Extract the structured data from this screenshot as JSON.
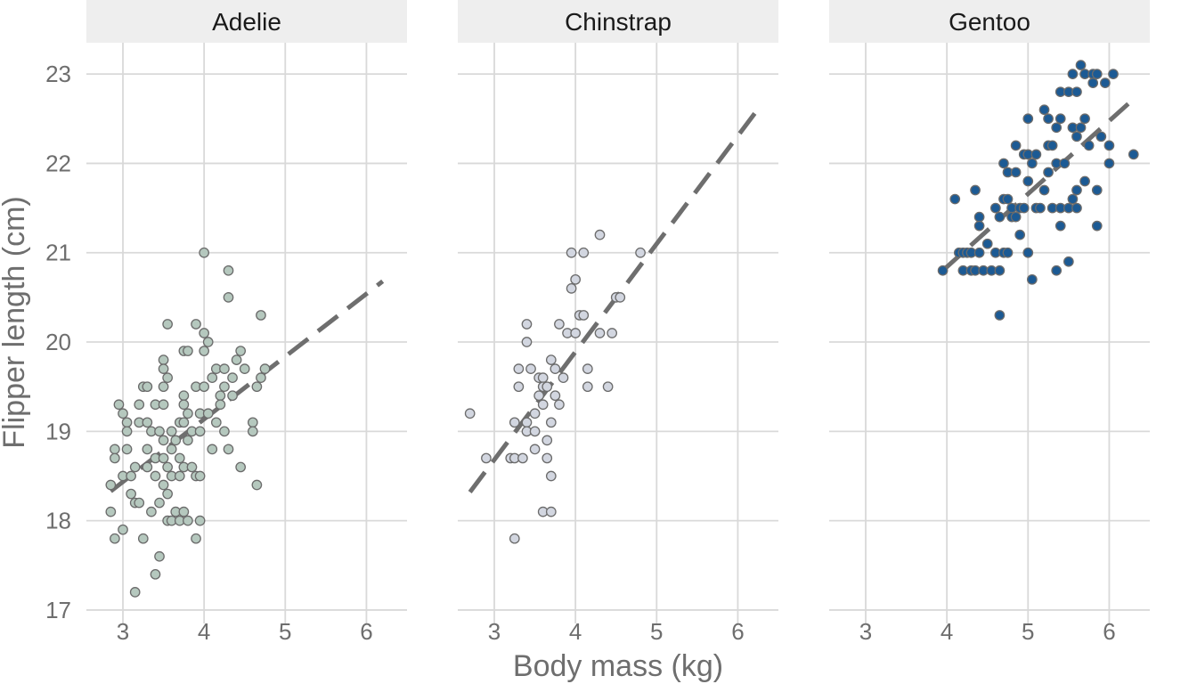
{
  "chart_data": {
    "type": "scatter",
    "xlabel": "Body mass (kg)",
    "ylabel": "Flipper length (cm)",
    "xlim": [
      2.55,
      6.5
    ],
    "ylim": [
      16.85,
      23.35
    ],
    "xticks": [
      3,
      4,
      5,
      6
    ],
    "yticks": [
      17,
      18,
      19,
      20,
      21,
      22,
      23
    ],
    "grid": true,
    "legend": "none",
    "panels": [
      {
        "label": "Adelie",
        "color": "#b5c8be",
        "trend": {
          "x": [
            2.85,
            6.2
          ],
          "y": [
            18.33,
            20.68
          ]
        },
        "points": [
          [
            2.85,
            18.4
          ],
          [
            2.9,
            18.8
          ],
          [
            2.9,
            18.7
          ],
          [
            2.95,
            19.3
          ],
          [
            2.9,
            17.8
          ],
          [
            2.85,
            18.1
          ],
          [
            3.0,
            17.9
          ],
          [
            3.0,
            19.2
          ],
          [
            3.05,
            19.1
          ],
          [
            3.05,
            19.0
          ],
          [
            3.05,
            18.8
          ],
          [
            3.0,
            18.5
          ],
          [
            3.1,
            18.3
          ],
          [
            3.15,
            18.6
          ],
          [
            3.1,
            18.5
          ],
          [
            3.15,
            18.2
          ],
          [
            3.2,
            18.2
          ],
          [
            3.2,
            19.1
          ],
          [
            3.2,
            19.3
          ],
          [
            3.25,
            19.5
          ],
          [
            3.25,
            17.8
          ],
          [
            3.15,
            17.2
          ],
          [
            3.3,
            19.5
          ],
          [
            3.3,
            19.1
          ],
          [
            3.3,
            18.8
          ],
          [
            3.3,
            18.6
          ],
          [
            3.35,
            19.0
          ],
          [
            3.35,
            18.1
          ],
          [
            3.4,
            18.7
          ],
          [
            3.4,
            18.5
          ],
          [
            3.4,
            19.3
          ],
          [
            3.4,
            17.4
          ],
          [
            3.45,
            19.0
          ],
          [
            3.45,
            17.6
          ],
          [
            3.45,
            18.2
          ],
          [
            3.5,
            19.8
          ],
          [
            3.5,
            19.7
          ],
          [
            3.5,
            19.5
          ],
          [
            3.5,
            19.3
          ],
          [
            3.5,
            18.9
          ],
          [
            3.5,
            18.7
          ],
          [
            3.5,
            18.4
          ],
          [
            3.55,
            19.6
          ],
          [
            3.55,
            18.6
          ],
          [
            3.55,
            18.3
          ],
          [
            3.55,
            18.0
          ],
          [
            3.55,
            20.2
          ],
          [
            3.6,
            19.0
          ],
          [
            3.6,
            18.8
          ],
          [
            3.6,
            18.5
          ],
          [
            3.6,
            18.0
          ],
          [
            3.65,
            18.9
          ],
          [
            3.65,
            18.1
          ],
          [
            3.7,
            18.7
          ],
          [
            3.7,
            18.5
          ],
          [
            3.7,
            19.1
          ],
          [
            3.7,
            18.0
          ],
          [
            3.75,
            19.9
          ],
          [
            3.75,
            19.4
          ],
          [
            3.75,
            19.3
          ],
          [
            3.75,
            19.1
          ],
          [
            3.75,
            18.6
          ],
          [
            3.75,
            18.1
          ],
          [
            3.8,
            19.9
          ],
          [
            3.8,
            19.2
          ],
          [
            3.8,
            18.9
          ],
          [
            3.8,
            18.0
          ],
          [
            3.85,
            19.0
          ],
          [
            3.85,
            18.6
          ],
          [
            3.9,
            20.2
          ],
          [
            3.9,
            19.5
          ],
          [
            3.9,
            18.5
          ],
          [
            3.9,
            17.8
          ],
          [
            3.95,
            19.2
          ],
          [
            3.95,
            19.0
          ],
          [
            3.95,
            18.5
          ],
          [
            3.95,
            18.0
          ],
          [
            4.0,
            21.0
          ],
          [
            4.0,
            20.1
          ],
          [
            4.0,
            19.9
          ],
          [
            4.0,
            19.5
          ],
          [
            4.05,
            20.0
          ],
          [
            4.05,
            19.2
          ],
          [
            4.1,
            19.6
          ],
          [
            4.1,
            18.8
          ],
          [
            4.15,
            19.1
          ],
          [
            4.15,
            19.7
          ],
          [
            4.2,
            19.4
          ],
          [
            4.2,
            19.3
          ],
          [
            4.25,
            19.7
          ],
          [
            4.25,
            19.5
          ],
          [
            4.25,
            19.0
          ],
          [
            4.3,
            20.8
          ],
          [
            4.3,
            20.5
          ],
          [
            4.3,
            18.8
          ],
          [
            4.35,
            19.6
          ],
          [
            4.35,
            19.4
          ],
          [
            4.4,
            19.8
          ],
          [
            4.45,
            19.9
          ],
          [
            4.45,
            18.6
          ],
          [
            4.5,
            19.7
          ],
          [
            4.6,
            19.1
          ],
          [
            4.6,
            19.0
          ],
          [
            4.65,
            18.4
          ],
          [
            4.65,
            19.5
          ],
          [
            4.7,
            19.6
          ],
          [
            4.7,
            20.3
          ],
          [
            4.75,
            19.7
          ]
        ]
      },
      {
        "label": "Chinstrap",
        "color": "#d2d6e0",
        "trend": {
          "x": [
            2.7,
            6.3
          ],
          "y": [
            18.32,
            22.67
          ]
        },
        "points": [
          [
            2.7,
            19.2
          ],
          [
            2.9,
            18.7
          ],
          [
            3.2,
            18.7
          ],
          [
            3.25,
            18.7
          ],
          [
            3.25,
            17.8
          ],
          [
            3.25,
            19.1
          ],
          [
            3.3,
            19.7
          ],
          [
            3.3,
            19.5
          ],
          [
            3.35,
            18.7
          ],
          [
            3.4,
            20.2
          ],
          [
            3.4,
            20.0
          ],
          [
            3.4,
            19.1
          ],
          [
            3.4,
            19.0
          ],
          [
            3.45,
            19.7
          ],
          [
            3.5,
            19.2
          ],
          [
            3.5,
            19.0
          ],
          [
            3.5,
            18.8
          ],
          [
            3.55,
            19.6
          ],
          [
            3.55,
            19.4
          ],
          [
            3.6,
            19.6
          ],
          [
            3.6,
            19.5
          ],
          [
            3.6,
            19.3
          ],
          [
            3.6,
            18.1
          ],
          [
            3.65,
            19.5
          ],
          [
            3.65,
            18.9
          ],
          [
            3.65,
            18.7
          ],
          [
            3.7,
            19.8
          ],
          [
            3.7,
            19.1
          ],
          [
            3.7,
            18.5
          ],
          [
            3.7,
            18.1
          ],
          [
            3.75,
            19.7
          ],
          [
            3.75,
            19.4
          ],
          [
            3.8,
            20.2
          ],
          [
            3.8,
            19.3
          ],
          [
            3.85,
            19.6
          ],
          [
            3.9,
            20.1
          ],
          [
            3.95,
            20.6
          ],
          [
            3.95,
            21.0
          ],
          [
            4.0,
            20.7
          ],
          [
            4.0,
            20.1
          ],
          [
            4.05,
            20.3
          ],
          [
            4.1,
            21.0
          ],
          [
            4.1,
            20.3
          ],
          [
            4.15,
            19.7
          ],
          [
            4.15,
            19.5
          ],
          [
            4.3,
            21.2
          ],
          [
            4.3,
            20.1
          ],
          [
            4.4,
            19.5
          ],
          [
            4.45,
            20.1
          ],
          [
            4.5,
            20.5
          ],
          [
            4.55,
            20.5
          ],
          [
            4.8,
            21.0
          ]
        ]
      },
      {
        "label": "Gentoo",
        "color": "#1c5a94",
        "trend": {
          "x": [
            3.95,
            6.3
          ],
          "y": [
            20.8,
            22.72
          ]
        },
        "points": [
          [
            3.95,
            20.8
          ],
          [
            4.1,
            21.6
          ],
          [
            4.15,
            21.0
          ],
          [
            4.2,
            20.8
          ],
          [
            4.2,
            21.0
          ],
          [
            4.25,
            21.0
          ],
          [
            4.3,
            20.8
          ],
          [
            4.3,
            21.0
          ],
          [
            4.35,
            20.8
          ],
          [
            4.35,
            21.7
          ],
          [
            4.4,
            21.4
          ],
          [
            4.4,
            21.3
          ],
          [
            4.4,
            21.0
          ],
          [
            4.45,
            20.8
          ],
          [
            4.5,
            21.1
          ],
          [
            4.55,
            20.8
          ],
          [
            4.6,
            21.5
          ],
          [
            4.6,
            21.0
          ],
          [
            4.65,
            21.4
          ],
          [
            4.65,
            20.8
          ],
          [
            4.65,
            20.3
          ],
          [
            4.7,
            22.0
          ],
          [
            4.7,
            21.6
          ],
          [
            4.7,
            21.0
          ],
          [
            4.75,
            21.9
          ],
          [
            4.75,
            21.6
          ],
          [
            4.75,
            21.0
          ],
          [
            4.8,
            21.5
          ],
          [
            4.8,
            21.4
          ],
          [
            4.85,
            22.2
          ],
          [
            4.85,
            21.9
          ],
          [
            4.85,
            21.4
          ],
          [
            4.9,
            21.5
          ],
          [
            4.9,
            21.2
          ],
          [
            4.95,
            22.1
          ],
          [
            4.95,
            21.5
          ],
          [
            5.0,
            22.5
          ],
          [
            5.0,
            22.1
          ],
          [
            5.0,
            21.8
          ],
          [
            5.0,
            21.0
          ],
          [
            5.05,
            22.0
          ],
          [
            5.05,
            20.7
          ],
          [
            5.1,
            22.1
          ],
          [
            5.1,
            21.5
          ],
          [
            5.15,
            21.5
          ],
          [
            5.2,
            22.6
          ],
          [
            5.2,
            21.7
          ],
          [
            5.25,
            22.5
          ],
          [
            5.25,
            22.2
          ],
          [
            5.25,
            21.9
          ],
          [
            5.3,
            22.2
          ],
          [
            5.3,
            21.5
          ],
          [
            5.35,
            22.4
          ],
          [
            5.35,
            22.0
          ],
          [
            5.35,
            20.8
          ],
          [
            5.4,
            22.8
          ],
          [
            5.4,
            22.5
          ],
          [
            5.4,
            21.5
          ],
          [
            5.4,
            21.3
          ],
          [
            5.45,
            22.0
          ],
          [
            5.5,
            22.8
          ],
          [
            5.5,
            21.5
          ],
          [
            5.5,
            20.9
          ],
          [
            5.55,
            23.0
          ],
          [
            5.55,
            22.4
          ],
          [
            5.55,
            21.6
          ],
          [
            5.6,
            22.8
          ],
          [
            5.6,
            22.3
          ],
          [
            5.6,
            21.7
          ],
          [
            5.6,
            21.5
          ],
          [
            5.65,
            23.1
          ],
          [
            5.65,
            22.4
          ],
          [
            5.7,
            23.0
          ],
          [
            5.7,
            22.5
          ],
          [
            5.7,
            21.8
          ],
          [
            5.75,
            22.2
          ],
          [
            5.8,
            23.0
          ],
          [
            5.8,
            22.9
          ],
          [
            5.85,
            23.0
          ],
          [
            5.85,
            21.7
          ],
          [
            5.85,
            21.3
          ],
          [
            5.9,
            22.3
          ],
          [
            5.95,
            22.9
          ],
          [
            6.0,
            22.2
          ],
          [
            6.0,
            22.0
          ],
          [
            6.05,
            23.0
          ],
          [
            6.3,
            22.1
          ]
        ]
      }
    ]
  }
}
